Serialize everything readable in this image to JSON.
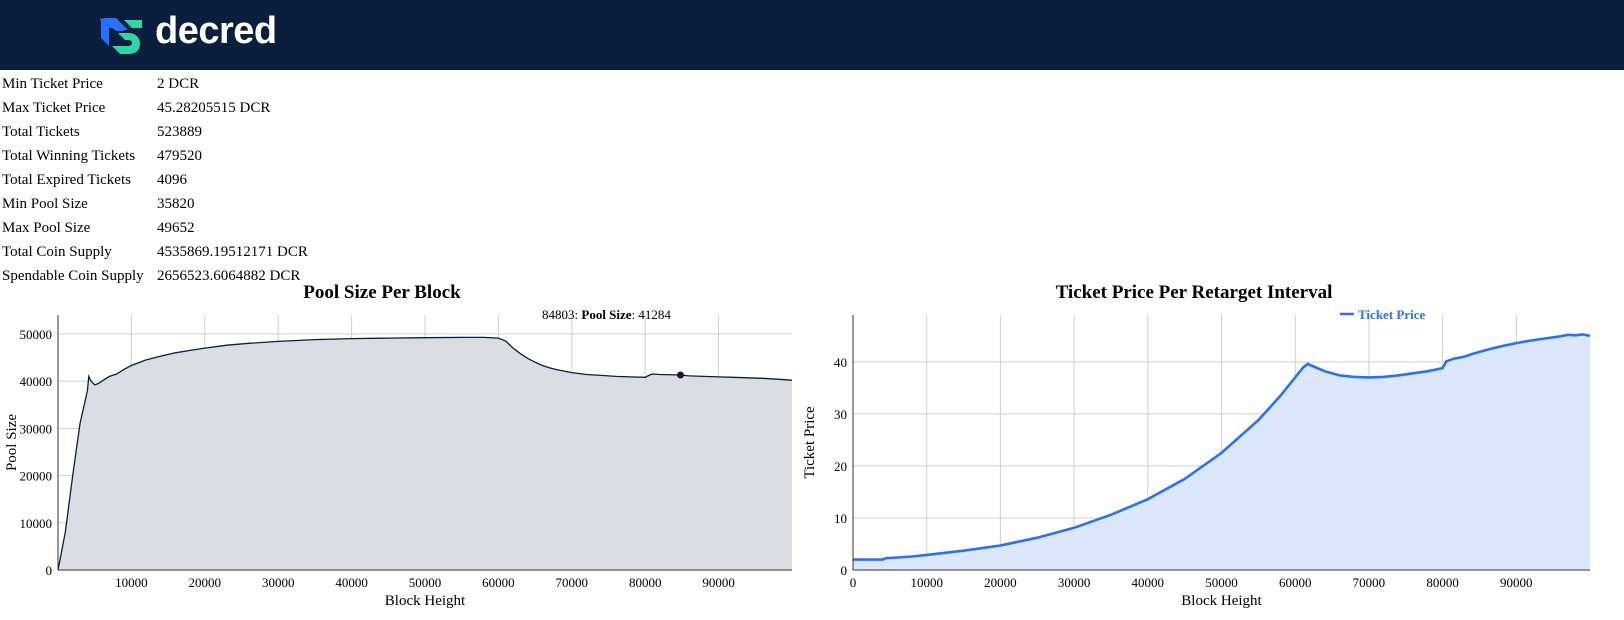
{
  "header": {
    "logo_text": "decred",
    "colors": {
      "bg": "#0c1e3e",
      "logo_blue": "#2970ff",
      "logo_teal": "#2ed6a1"
    }
  },
  "stats": [
    {
      "label": "Min Ticket Price",
      "value": "2 DCR"
    },
    {
      "label": "Max Ticket Price",
      "value": "45.28205515 DCR"
    },
    {
      "label": "Total Tickets",
      "value": "523889"
    },
    {
      "label": "Total Winning Tickets",
      "value": "479520"
    },
    {
      "label": "Total Expired Tickets",
      "value": "4096"
    },
    {
      "label": "Min Pool Size",
      "value": "35820"
    },
    {
      "label": "Max Pool Size",
      "value": "49652"
    },
    {
      "label": "Total Coin Supply",
      "value": "4535869.19512171 DCR"
    },
    {
      "label": "Spendable Coin Supply",
      "value": "2656523.6064882 DCR"
    }
  ],
  "chart_data": [
    {
      "type": "area",
      "title": "Pool Size Per Block",
      "xlabel": "Block Height",
      "ylabel": "Pool Size",
      "xlim": [
        0,
        100000
      ],
      "ylim": [
        0,
        54000
      ],
      "xticks": [
        10000,
        20000,
        30000,
        40000,
        50000,
        60000,
        70000,
        80000,
        90000
      ],
      "yticks": [
        0,
        10000,
        20000,
        30000,
        40000,
        50000
      ],
      "grid": true,
      "colors": {
        "line": "#0c1e3e",
        "fill": "#dcdde3"
      },
      "series": [
        {
          "name": "Pool Size",
          "x": [
            0,
            1000,
            2000,
            3000,
            4000,
            4200,
            4500,
            5000,
            5500,
            6000,
            7000,
            8000,
            9000,
            10000,
            12000,
            14000,
            16000,
            18000,
            20000,
            23000,
            26000,
            30000,
            35000,
            40000,
            45000,
            50000,
            55000,
            58000,
            60000,
            61000,
            62000,
            63000,
            64000,
            65000,
            66000,
            67000,
            68000,
            70000,
            72000,
            74000,
            76000,
            78000,
            80000,
            80600,
            81000,
            82000,
            84803,
            86000,
            88000,
            90000,
            92000,
            94000,
            96000,
            98000,
            100000
          ],
          "y": [
            0,
            8000,
            20000,
            31000,
            38000,
            41000,
            40000,
            39200,
            39500,
            40000,
            41000,
            41500,
            42500,
            43300,
            44500,
            45300,
            46000,
            46500,
            47000,
            47600,
            48000,
            48400,
            48800,
            49000,
            49100,
            49200,
            49250,
            49250,
            49100,
            48500,
            47000,
            45800,
            44800,
            44000,
            43300,
            42800,
            42400,
            41800,
            41400,
            41200,
            41000,
            40900,
            40800,
            41300,
            41500,
            41400,
            41284,
            41100,
            41000,
            40900,
            40800,
            40700,
            40600,
            40400,
            40200
          ]
        }
      ],
      "tooltip": {
        "x": 84803,
        "label": "Pool Size",
        "value": 41284
      }
    },
    {
      "type": "area",
      "title": "Ticket Price Per Retarget Interval",
      "xlabel": "Block Height",
      "ylabel": "Ticket Price",
      "xlim": [
        0,
        100000
      ],
      "ylim": [
        0,
        49
      ],
      "xticks": [
        0,
        10000,
        20000,
        30000,
        40000,
        50000,
        60000,
        70000,
        80000,
        90000
      ],
      "yticks": [
        0,
        10,
        20,
        30,
        40
      ],
      "grid": true,
      "legend": "top-right",
      "colors": {
        "line": "#2970ff",
        "fill": "#dce7fb"
      },
      "series": [
        {
          "name": "Ticket Price",
          "x": [
            0,
            2000,
            4000,
            4500,
            5000,
            8000,
            10000,
            15000,
            20000,
            25000,
            30000,
            35000,
            40000,
            45000,
            50000,
            55000,
            58000,
            60000,
            61000,
            61700,
            62500,
            64000,
            66000,
            68000,
            70000,
            72000,
            74000,
            76000,
            78000,
            80000,
            80500,
            81500,
            83000,
            84000,
            86000,
            88000,
            90000,
            92000,
            94000,
            96000,
            97000,
            98000,
            99000,
            100000
          ],
          "y": [
            2,
            2,
            2,
            2.3,
            2.3,
            2.6,
            2.9,
            3.7,
            4.7,
            6.2,
            8.1,
            10.6,
            13.6,
            17.5,
            22.5,
            28.8,
            33.5,
            37,
            38.8,
            39.6,
            39.1,
            38.2,
            37.4,
            37.1,
            37,
            37.1,
            37.4,
            37.8,
            38.2,
            38.8,
            40.1,
            40.6,
            41,
            41.5,
            42.3,
            43,
            43.6,
            44.1,
            44.5,
            44.9,
            45.2,
            45.1,
            45.28,
            45
          ]
        }
      ]
    }
  ]
}
